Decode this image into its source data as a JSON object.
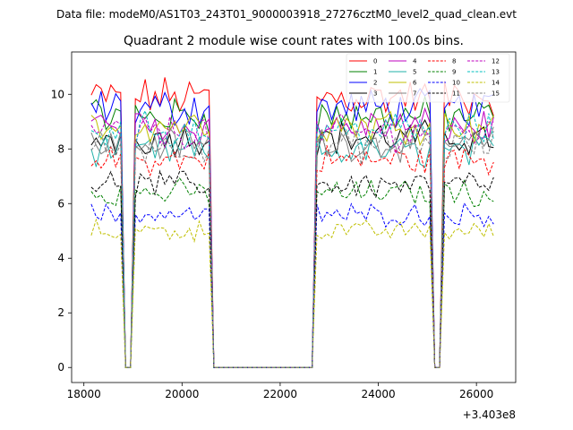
{
  "suptitle": "Data file: modeM0/AS1T03_243T01_9000003918_27276cztM0_level2_quad_clean.evt",
  "chart_data": {
    "type": "line",
    "title": "Quadrant 2 module wise count rates with 100.0s bins.",
    "xlabel": "",
    "ylabel": "",
    "x_offset_label": "+3.403e8",
    "xlim": [
      17750,
      26800
    ],
    "ylim": [
      -0.55,
      11.55
    ],
    "xticks": [
      18000,
      20000,
      22000,
      24000,
      26000
    ],
    "xtick_labels": [
      "18000",
      "20000",
      "22000",
      "24000",
      "26000"
    ],
    "yticks": [
      0,
      2,
      4,
      6,
      8,
      10
    ],
    "ytick_labels": [
      "0",
      "2",
      "4",
      "6",
      "8",
      "10"
    ],
    "legend_location": "top-right",
    "series": [
      {
        "name": "0",
        "color": "#ff0000",
        "dash": false,
        "level": 9.9
      },
      {
        "name": "1",
        "color": "#008000",
        "dash": false,
        "level": 9.2
      },
      {
        "name": "2",
        "color": "#0000ff",
        "dash": false,
        "level": 9.5
      },
      {
        "name": "3",
        "color": "#000000",
        "dash": false,
        "level": 8.4
      },
      {
        "name": "4",
        "color": "#bf00bf",
        "dash": false,
        "level": 8.8
      },
      {
        "name": "5",
        "color": "#20b2aa",
        "dash": false,
        "level": 7.9
      },
      {
        "name": "6",
        "color": "#bfbf00",
        "dash": false,
        "level": 8.9
      },
      {
        "name": "7",
        "color": "#808080",
        "dash": false,
        "level": 8.2
      },
      {
        "name": "8",
        "color": "#ff0000",
        "dash": true,
        "level": 7.6
      },
      {
        "name": "9",
        "color": "#008000",
        "dash": true,
        "level": 6.4
      },
      {
        "name": "10",
        "color": "#0000ff",
        "dash": true,
        "level": 5.6
      },
      {
        "name": "11",
        "color": "#000000",
        "dash": true,
        "level": 6.7
      },
      {
        "name": "12",
        "color": "#bf00bf",
        "dash": true,
        "level": 8.6
      },
      {
        "name": "13",
        "color": "#00bfbf",
        "dash": true,
        "level": 8.7
      },
      {
        "name": "14",
        "color": "#bfbf00",
        "dash": true,
        "level": 5.0
      },
      {
        "name": "15",
        "color": "#808080",
        "dash": true,
        "level": 8.1
      }
    ],
    "segments": [
      {
        "x_start": 18150,
        "x_end": 18750
      },
      {
        "x_start": 19050,
        "x_end": 20550
      },
      {
        "x_start": 22750,
        "x_end": 25050
      },
      {
        "x_start": 25350,
        "x_end": 26350
      }
    ],
    "zero_level": 0.0
  }
}
